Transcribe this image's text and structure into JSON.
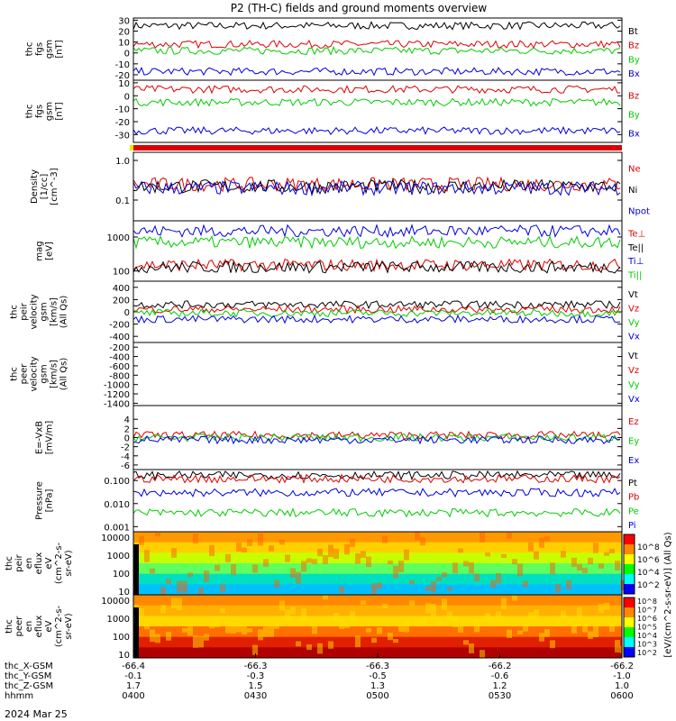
{
  "title": "P2 (TH-C) fields and ground moments overview",
  "date": "2024 Mar 25",
  "colors": {
    "black": "#000000",
    "red": "#dd0000",
    "green": "#00cc00",
    "blue": "#0000dd",
    "yellow": "#e8e800"
  },
  "chart_data": {
    "type": "line",
    "xaxis": {
      "label": "hhmm",
      "ticks": [
        "0400",
        "0430",
        "0500",
        "0530",
        "0600"
      ],
      "extra_rows": [
        {
          "label": "thc_X-GSM",
          "values": [
            "-66.4",
            "-66.3",
            "-66.3",
            "-66.2",
            "-66.2"
          ]
        },
        {
          "label": "thc_Y-GSM",
          "values": [
            "-0.1",
            "-0.3",
            "-0.5",
            "-0.6",
            "-1.0"
          ]
        },
        {
          "label": "thc_Z-GSM",
          "values": [
            "1.7",
            "1.5",
            "1.3",
            "1.2",
            "1.0"
          ]
        }
      ]
    },
    "panels": [
      {
        "ylabel": [
          "thc",
          "fgs",
          "gsm",
          "[nT]"
        ],
        "scale": "linear",
        "ylim": [
          -25,
          32
        ],
        "ticks": [
          "30",
          "20",
          "10",
          "0",
          "-10",
          "-20"
        ],
        "series": [
          {
            "name": "Bt",
            "color": "black",
            "level": 25
          },
          {
            "name": "Bz",
            "color": "red",
            "level": 8
          },
          {
            "name": "By",
            "color": "green",
            "level": 2
          },
          {
            "name": "Bx",
            "color": "blue",
            "level": -17
          }
        ]
      },
      {
        "ylabel": [
          "thc",
          "fgs",
          "gsm",
          "[nT]"
        ],
        "scale": "linear",
        "ylim": [
          -36,
          12
        ],
        "ticks": [
          "10",
          "0",
          "-10",
          "-20",
          "-30"
        ],
        "series": [
          {
            "name": "Bz",
            "color": "red",
            "level": 5
          },
          {
            "name": "By",
            "color": "green",
            "level": -5
          },
          {
            "name": "Bx",
            "color": "blue",
            "level": -27
          }
        ]
      },
      {
        "ylabel": [
          "Density",
          "[1/cc]",
          "[cm^-3]"
        ],
        "scale": "log",
        "ylim": [
          0.03,
          1.6
        ],
        "ticks": [
          "1.0",
          "0.1"
        ],
        "series": [
          {
            "name": "Ne",
            "color": "red",
            "level": 0.25
          },
          {
            "name": "Ni",
            "color": "black",
            "level": 0.22
          },
          {
            "name": "Npot",
            "color": "blue",
            "level": 0.2
          }
        ]
      },
      {
        "ylabel": [
          "mag",
          "[eV]"
        ],
        "scale": "log",
        "ylim": [
          50,
          3000
        ],
        "ticks": [
          "1000",
          "100"
        ],
        "series": [
          {
            "name": "Te⊥",
            "color": "red",
            "level": 150
          },
          {
            "name": "Te||",
            "color": "black",
            "level": 130
          },
          {
            "name": "Ti⊥",
            "color": "blue",
            "level": 1500
          },
          {
            "name": "Ti||",
            "color": "green",
            "level": 700
          }
        ]
      },
      {
        "ylabel": [
          "thc",
          "peir",
          "velocity",
          "gsm",
          "[km/s]",
          "(All Qs)"
        ],
        "scale": "linear",
        "ylim": [
          -500,
          500
        ],
        "ticks": [
          "400",
          "200",
          "0",
          "-200",
          "-400"
        ],
        "series": [
          {
            "name": "Vt",
            "color": "black",
            "level": 120
          },
          {
            "name": "Vz",
            "color": "red",
            "level": 40
          },
          {
            "name": "Vy",
            "color": "green",
            "level": -20
          },
          {
            "name": "Vx",
            "color": "blue",
            "level": -120
          }
        ]
      },
      {
        "ylabel": [
          "thc",
          "peer",
          "velocity",
          "gsm",
          "[km/s]",
          "(All Qs)"
        ],
        "scale": "linear",
        "ylim": [
          -1450,
          -100
        ],
        "ticks": [
          "-200",
          "-400",
          "-600",
          "-800",
          "-1000",
          "-1200",
          "-1400"
        ],
        "series": [
          {
            "name": "Vt",
            "color": "black"
          },
          {
            "name": "Vz",
            "color": "red"
          },
          {
            "name": "Vy",
            "color": "green"
          },
          {
            "name": "Vx",
            "color": "blue"
          }
        ]
      },
      {
        "ylabel": [
          "E=-VxB",
          "[mV/m]"
        ],
        "scale": "linear",
        "ylim": [
          -7,
          7
        ],
        "ticks": [
          "4",
          "2",
          "0",
          "-2",
          "-4",
          "-6"
        ],
        "series": [
          {
            "name": "Ez",
            "color": "red",
            "level": 0.5
          },
          {
            "name": "Ey",
            "color": "green",
            "level": 0
          },
          {
            "name": "Ex",
            "color": "blue",
            "level": -0.5
          }
        ]
      },
      {
        "ylabel": [
          "Pressure",
          "[nPa]"
        ],
        "scale": "log",
        "ylim": [
          0.0006,
          0.3
        ],
        "ticks": [
          "0.100",
          "0.010",
          "0.001"
        ],
        "series": [
          {
            "name": "Pt",
            "color": "black",
            "level": 0.17
          },
          {
            "name": "Pb",
            "color": "red",
            "level": 0.12
          },
          {
            "name": "Pe",
            "color": "green",
            "level": 0.004
          },
          {
            "name": "Pi",
            "color": "blue",
            "level": 0.03
          }
        ]
      },
      {
        "ylabel": [
          "thc",
          "peir",
          "en",
          "eflux",
          "eV",
          "(cm^2-s-",
          "sr-eV)"
        ],
        "scale": "spectrogram",
        "ticks": [
          "10000",
          "1000",
          "100",
          "10"
        ]
      },
      {
        "ylabel": [
          "thc",
          "peer",
          "en",
          "eflux",
          "eV",
          "(cm^2-s-",
          "sr-eV)"
        ],
        "scale": "spectrogram",
        "ticks": [
          "10000",
          "1000",
          "100",
          "10"
        ]
      }
    ],
    "colorbar": {
      "label": "[eV/(cm^2-s-sr-eV)] (All Qs)",
      "ion_ticks": [
        "10^8",
        "10^6",
        "10^4",
        "10^2"
      ],
      "electron_ticks": [
        "10^8",
        "10^7",
        "10^6",
        "10^5",
        "10^4",
        "10^3",
        "10^2"
      ]
    }
  }
}
